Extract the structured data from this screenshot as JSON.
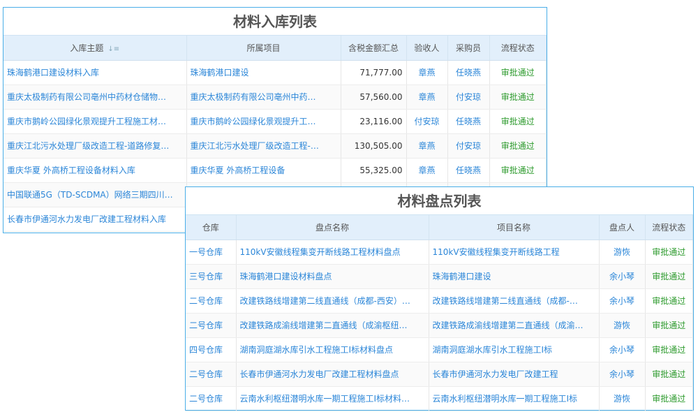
{
  "inbound": {
    "title": "材料入库列表",
    "headers": [
      "入库主题",
      "所属项目",
      "含税金额汇总",
      "验收人",
      "采购员",
      "流程状态"
    ],
    "rows": [
      [
        "珠海鹤港口建设材料入库",
        "珠海鹤港口建设",
        "71,777.00",
        "章燕",
        "任晓燕",
        "审批通过"
      ],
      [
        "重庆太极制药有限公司亳州中药材仓储物…",
        "重庆太极制药有限公司亳州中药…",
        "57,560.00",
        "章燕",
        "付安琼",
        "审批通过"
      ],
      [
        "重庆市鹅岭公园绿化景观提升工程施工材…",
        "重庆市鹅岭公园绿化景观提升工…",
        "23,116.00",
        "付安琼",
        "任晓燕",
        "审批通过"
      ],
      [
        "重庆江北污水处理厂级改造工程-道路修复…",
        "重庆江北污水处理厂级改造工程-…",
        "130,505.00",
        "章燕",
        "付安琼",
        "审批通过"
      ],
      [
        "重庆华夏 外高桥工程设备材料入库",
        "重庆华夏 外高桥工程设备",
        "55,325.00",
        "章燕",
        "任晓燕",
        "审批通过"
      ],
      [
        "中国联通5G（TD-SCDMA）网络三期四川…",
        "",
        "",
        "",
        "",
        ""
      ],
      [
        "长春市伊通河水力发电厂改建工程材料入库",
        "",
        "",
        "",
        "",
        ""
      ]
    ]
  },
  "stocktake": {
    "title": "材料盘点列表",
    "headers": [
      "仓库",
      "盘点名称",
      "项目名称",
      "盘点人",
      "流程状态"
    ],
    "rows": [
      [
        "一号仓库",
        "110kV安徽线程集变开断线路工程材料盘点",
        "110kV安徽线程集变开断线路工程",
        "游恢",
        "审批通过"
      ],
      [
        "三号仓库",
        "珠海鹤港口建设材料盘点",
        "珠海鹤港口建设",
        "余小琴",
        "审批通过"
      ],
      [
        "二号仓库",
        "改建铁路线增建第二线直通线（成都-西安）…",
        "改建铁路线增建第二线直通线（成都-…",
        "余小琴",
        "审批通过"
      ],
      [
        "二号仓库",
        "改建铁路成渝线增建第二直通线（成渝枢纽…",
        "改建铁路成渝线增建第二直通线（成渝…",
        "游恢",
        "审批通过"
      ],
      [
        "四号仓库",
        "湖南洞庭湖水库引水工程施工I标材料盘点",
        "湖南洞庭湖水库引水工程施工I标",
        "余小琴",
        "审批通过"
      ],
      [
        "二号仓库",
        "长春市伊通河水力发电厂改建工程材料盘点",
        "长春市伊通河水力发电厂改建工程",
        "余小琴",
        "审批通过"
      ],
      [
        "二号仓库",
        "云南水利枢纽潜明水库一期工程施工I标材料…",
        "云南水利枢纽潜明水库一期工程施工I标",
        "游恢",
        "审批通过"
      ]
    ]
  },
  "colors": {
    "link": "#2b86d8",
    "approved": "#2c9a2c",
    "header_bg": "#e2effb",
    "border": "#4aaee8"
  }
}
